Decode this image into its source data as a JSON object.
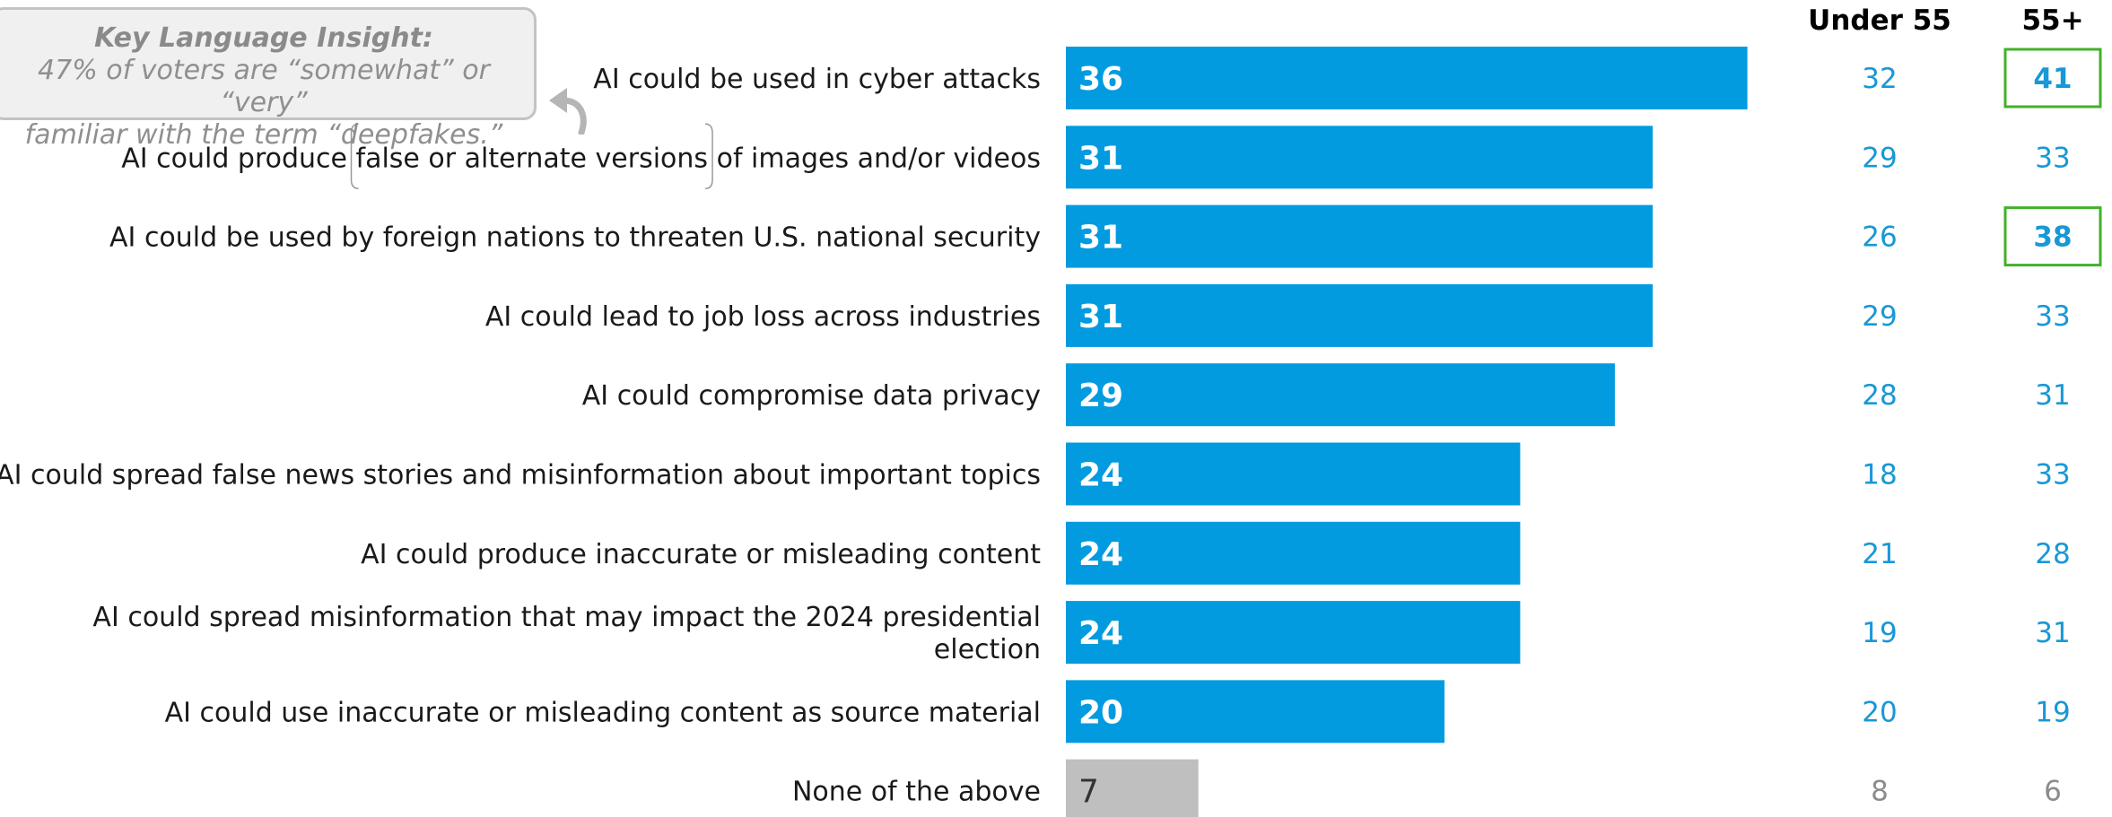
{
  "insight": {
    "title": "Key Language Insight:",
    "body_line1": "47% of voters are “somewhat” or “very”",
    "body_line2": "familiar with the term “deepfakes.”",
    "arrow_icon": "curved-arrow-icon"
  },
  "columns": {
    "under55": "Under 55",
    "over55": "55+"
  },
  "colors": {
    "bar": "#029be0",
    "bar_none": "#bfbfbf",
    "column_values": "#1898d6",
    "column_values_none": "#8c8c8c",
    "highlight_box": "#43b02a",
    "label_text": "#1a1a1a"
  },
  "highlight_bracket": {
    "row": 1,
    "text": "false or alternate versions"
  },
  "chart_data": {
    "type": "bar",
    "orientation": "horizontal",
    "xlim": [
      0,
      40
    ],
    "categories": [
      "AI could be used in cyber attacks",
      "AI could produce false or alternate versions of images and/or videos",
      "AI could be used by foreign nations to threaten U.S. national security",
      "AI could lead to job loss across industries",
      "AI could compromise data privacy",
      "AI could spread false news stories and misinformation about important topics",
      "AI could produce inaccurate or misleading content",
      "AI could spread misinformation that may impact the 2024 presidential election",
      "AI could use inaccurate or misleading content as source material",
      "None of the above"
    ],
    "values": [
      36,
      31,
      31,
      31,
      29,
      24,
      24,
      24,
      20,
      7
    ],
    "under55": [
      32,
      29,
      26,
      29,
      28,
      18,
      21,
      19,
      20,
      8
    ],
    "over55": [
      41,
      33,
      38,
      33,
      31,
      33,
      28,
      31,
      19,
      6
    ],
    "over55_highlighted": [
      true,
      false,
      true,
      false,
      false,
      false,
      false,
      false,
      false,
      false
    ],
    "none_row_index": 9
  }
}
